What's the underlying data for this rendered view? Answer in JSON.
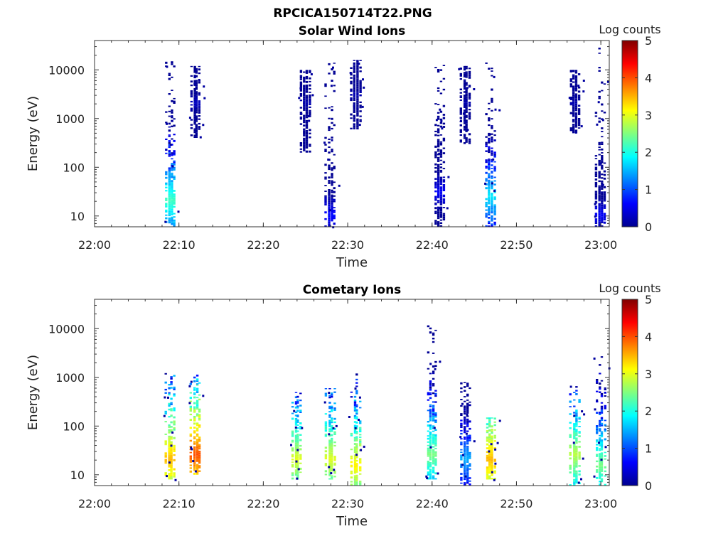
{
  "figure": {
    "title": "RPCICA150714T22.PNG"
  },
  "colorbar": {
    "label": "Log counts",
    "range": [
      0,
      5
    ],
    "ticks": [
      "0",
      "1",
      "2",
      "3",
      "4",
      "5"
    ],
    "colormap": [
      "#00008f",
      "#0000ff",
      "#0080ff",
      "#00ffff",
      "#80ff80",
      "#ffff00",
      "#ff8000",
      "#ff0000",
      "#800000"
    ]
  },
  "chart_data": [
    {
      "type": "heatmap",
      "title": "Solar Wind Ions",
      "xlabel": "Time",
      "ylabel": "Energy (eV)",
      "y_scale": "log",
      "xlim": [
        "22:00",
        "23:01"
      ],
      "ylim": [
        6,
        40000
      ],
      "xticks": [
        "22:00",
        "22:10",
        "22:20",
        "22:30",
        "22:40",
        "22:50",
        "23:00"
      ],
      "yticks": [
        "10",
        "100",
        "1000",
        "10000"
      ],
      "bursts": [
        {
          "time": "22:09",
          "e_min": 6,
          "e_max": 15000,
          "peak_energy": 20,
          "peak_log_counts": 2.2
        },
        {
          "time": "22:12",
          "e_min": 400,
          "e_max": 12000,
          "peak_energy": 2000,
          "peak_log_counts": 0.3
        },
        {
          "time": "22:25",
          "e_min": 200,
          "e_max": 10000,
          "peak_energy": 2000,
          "peak_log_counts": 0.2
        },
        {
          "time": "22:28",
          "e_min": 6,
          "e_max": 14000,
          "peak_energy": 10,
          "peak_log_counts": 0.7
        },
        {
          "time": "22:31",
          "e_min": 600,
          "e_max": 16000,
          "peak_energy": 3000,
          "peak_log_counts": 0.2
        },
        {
          "time": "22:41",
          "e_min": 6,
          "e_max": 15000,
          "peak_energy": 30,
          "peak_log_counts": 0.6
        },
        {
          "time": "22:44",
          "e_min": 300,
          "e_max": 12000,
          "peak_energy": 2000,
          "peak_log_counts": 0.2
        },
        {
          "time": "22:47",
          "e_min": 6,
          "e_max": 18000,
          "peak_energy": 25,
          "peak_log_counts": 1.8
        },
        {
          "time": "22:57",
          "e_min": 500,
          "e_max": 10000,
          "peak_energy": 2000,
          "peak_log_counts": 0.2
        },
        {
          "time": "23:00",
          "e_min": 6,
          "e_max": 30000,
          "peak_energy": 10,
          "peak_log_counts": 0.6
        }
      ]
    },
    {
      "type": "heatmap",
      "title": "Cometary Ions",
      "xlabel": "Time",
      "ylabel": "Energy (eV)",
      "y_scale": "log",
      "xlim": [
        "22:00",
        "23:01"
      ],
      "ylim": [
        6,
        40000
      ],
      "xticks": [
        "22:00",
        "22:10",
        "22:20",
        "22:30",
        "22:40",
        "22:50",
        "23:00"
      ],
      "yticks": [
        "10",
        "100",
        "1000",
        "10000"
      ],
      "bursts": [
        {
          "time": "22:09",
          "e_min": 8,
          "e_max": 1400,
          "peak_energy": 20,
          "peak_log_counts": 3.5
        },
        {
          "time": "22:12",
          "e_min": 10,
          "e_max": 1200,
          "peak_energy": 25,
          "peak_log_counts": 4.0
        },
        {
          "time": "22:24",
          "e_min": 8,
          "e_max": 500,
          "peak_energy": 20,
          "peak_log_counts": 3.0
        },
        {
          "time": "22:28",
          "e_min": 8,
          "e_max": 600,
          "peak_energy": 20,
          "peak_log_counts": 3.0
        },
        {
          "time": "22:31",
          "e_min": 6,
          "e_max": 1300,
          "peak_energy": 15,
          "peak_log_counts": 3.2
        },
        {
          "time": "22:40",
          "e_min": 8,
          "e_max": 16000,
          "peak_energy": 25,
          "peak_log_counts": 2.5
        },
        {
          "time": "22:44",
          "e_min": 6,
          "e_max": 800,
          "peak_energy": 20,
          "peak_log_counts": 1.5
        },
        {
          "time": "22:47",
          "e_min": 8,
          "e_max": 150,
          "peak_energy": 20,
          "peak_log_counts": 3.5
        },
        {
          "time": "22:57",
          "e_min": 6,
          "e_max": 700,
          "peak_energy": 25,
          "peak_log_counts": 2.8
        },
        {
          "time": "23:00",
          "e_min": 6,
          "e_max": 3000,
          "peak_energy": 15,
          "peak_log_counts": 2.5
        }
      ]
    }
  ]
}
